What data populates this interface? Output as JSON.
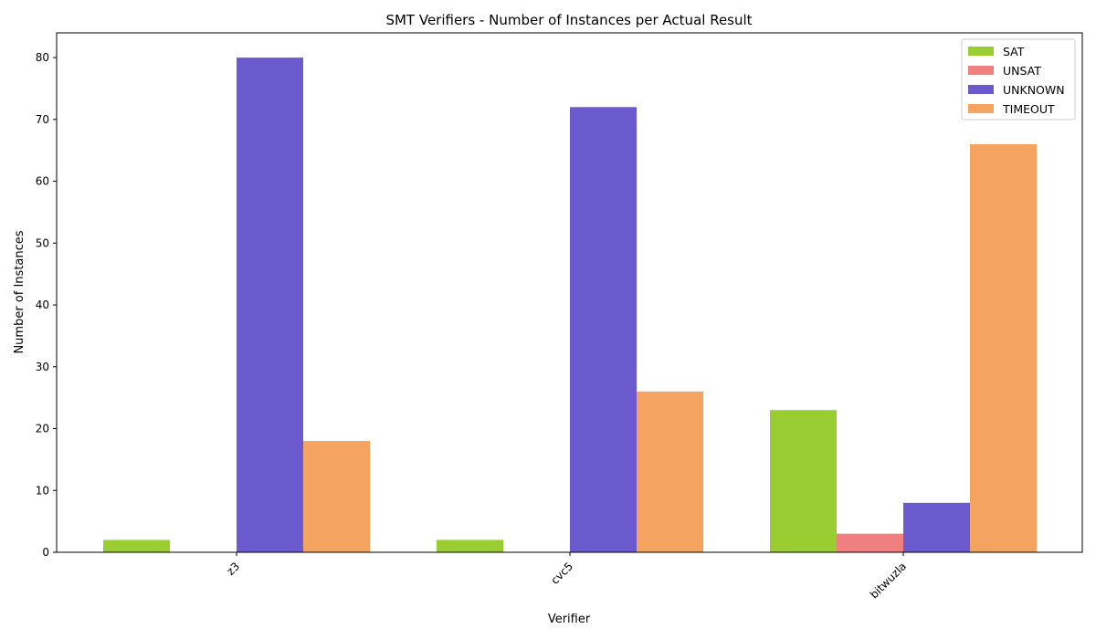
{
  "chart_data": {
    "type": "bar",
    "title": "SMT Verifiers - Number of Instances per Actual Result",
    "xlabel": "Verifier",
    "ylabel": "Number of Instances",
    "categories": [
      "z3",
      "cvc5",
      "bitwuzla"
    ],
    "series": [
      {
        "name": "SAT",
        "color": "#9acd32",
        "values": [
          2,
          2,
          23
        ]
      },
      {
        "name": "UNSAT",
        "color": "#f08080",
        "values": [
          0,
          0,
          3
        ]
      },
      {
        "name": "UNKNOWN",
        "color": "#6a5acd",
        "values": [
          80,
          72,
          8
        ]
      },
      {
        "name": "TIMEOUT",
        "color": "#f4a460",
        "values": [
          18,
          26,
          66
        ]
      }
    ],
    "ylim": [
      0,
      84
    ],
    "yticks": [
      0,
      10,
      20,
      30,
      40,
      50,
      60,
      70,
      80
    ],
    "grid": false,
    "legend_position": "top-right"
  }
}
